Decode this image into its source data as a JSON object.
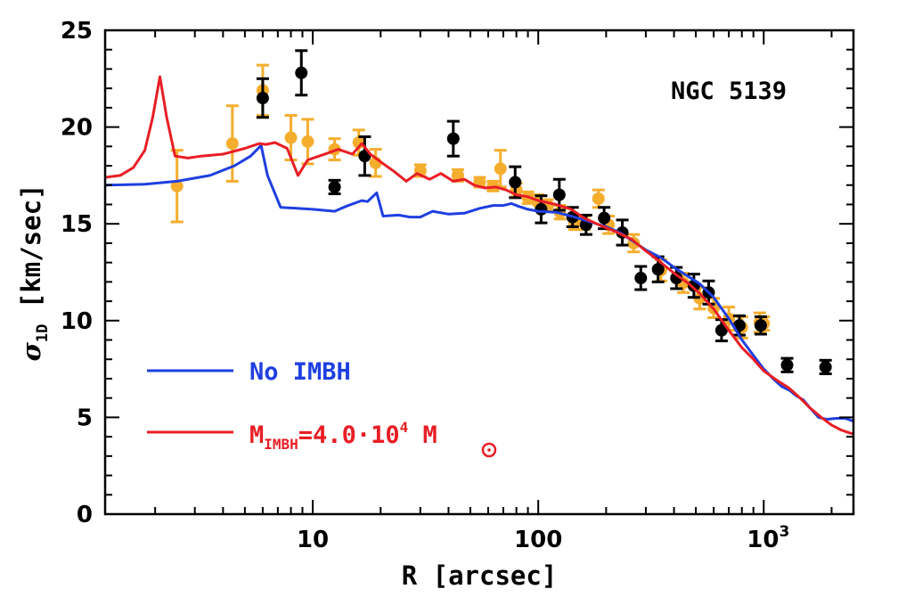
{
  "chart_data": {
    "type": "scatter",
    "annotation": "NGC 5139",
    "xlabel": "R [arcsec]",
    "ylabel_symbol": "σ",
    "ylabel_sub": "1D",
    "ylabel_rest": " [km/sec]",
    "x_scale": "log",
    "xlim": [
      1.2,
      2500
    ],
    "ylim": [
      0,
      25
    ],
    "x_ticks": [
      {
        "value": 10,
        "base": "10",
        "exp": ""
      },
      {
        "value": 100,
        "base": "100",
        "exp": ""
      },
      {
        "value": 1000,
        "base": "10",
        "exp": "3"
      }
    ],
    "y_ticks": [
      0,
      5,
      10,
      15,
      20,
      25
    ],
    "grid": false,
    "legend_position": "lower-left",
    "colors": {
      "blue": "#1f3fe0",
      "red": "#e81e25",
      "orange": "#f5ad2e",
      "black": "#000000"
    },
    "series": [
      {
        "kind": "line",
        "color_key": "blue",
        "legend_label": "No IMBH",
        "points": [
          [
            1.2,
            17.0
          ],
          [
            1.8,
            17.05
          ],
          [
            2.5,
            17.2
          ],
          [
            3.5,
            17.5
          ],
          [
            4.5,
            18.0
          ],
          [
            5.3,
            18.5
          ],
          [
            5.9,
            19.05
          ],
          [
            6.3,
            17.5
          ],
          [
            7.2,
            15.85
          ],
          [
            8.5,
            15.8
          ],
          [
            10,
            15.75
          ],
          [
            12.5,
            15.65
          ],
          [
            14,
            15.9
          ],
          [
            16.5,
            16.2
          ],
          [
            17.5,
            16.15
          ],
          [
            19.2,
            16.6
          ],
          [
            20.5,
            15.4
          ],
          [
            24,
            15.45
          ],
          [
            27,
            15.35
          ],
          [
            30,
            15.35
          ],
          [
            34,
            15.65
          ],
          [
            40,
            15.5
          ],
          [
            47,
            15.55
          ],
          [
            55,
            15.8
          ],
          [
            63,
            15.95
          ],
          [
            70,
            15.95
          ],
          [
            76,
            16.05
          ],
          [
            82,
            15.9
          ],
          [
            90,
            15.75
          ],
          [
            100,
            15.65
          ],
          [
            120,
            15.6
          ],
          [
            140,
            15.4
          ],
          [
            170,
            15.1
          ],
          [
            200,
            14.85
          ],
          [
            230,
            14.55
          ],
          [
            260,
            14.15
          ],
          [
            300,
            13.65
          ],
          [
            350,
            13.25
          ],
          [
            400,
            12.75
          ],
          [
            460,
            12.3
          ],
          [
            520,
            11.9
          ],
          [
            600,
            11.2
          ],
          [
            700,
            10.1
          ],
          [
            800,
            9.0
          ],
          [
            900,
            8.2
          ],
          [
            1000,
            7.5
          ],
          [
            1100,
            7.0
          ],
          [
            1200,
            6.6
          ],
          [
            1300,
            6.4
          ],
          [
            1400,
            6.1
          ],
          [
            1500,
            5.9
          ],
          [
            1600,
            5.5
          ],
          [
            1750,
            5.0
          ],
          [
            1900,
            4.9
          ],
          [
            2100,
            4.95
          ],
          [
            2300,
            4.95
          ],
          [
            2500,
            4.8
          ]
        ]
      },
      {
        "kind": "line",
        "color_key": "red",
        "legend_label": "M",
        "legend_sub": "IMBH",
        "legend_mid": "=4.0·10",
        "legend_sup": "4",
        "legend_tail": " M",
        "points": [
          [
            1.2,
            17.4
          ],
          [
            1.4,
            17.5
          ],
          [
            1.6,
            17.9
          ],
          [
            1.8,
            18.8
          ],
          [
            1.95,
            20.5
          ],
          [
            2.1,
            22.6
          ],
          [
            2.25,
            20.5
          ],
          [
            2.45,
            18.5
          ],
          [
            2.8,
            18.4
          ],
          [
            3.2,
            18.5
          ],
          [
            4,
            18.6
          ],
          [
            5,
            18.9
          ],
          [
            5.8,
            19.15
          ],
          [
            6.2,
            19.1
          ],
          [
            6.8,
            19.2
          ],
          [
            7.7,
            18.9
          ],
          [
            8.6,
            17.5
          ],
          [
            9.5,
            18.3
          ],
          [
            11,
            18.55
          ],
          [
            13,
            18.85
          ],
          [
            15,
            18.6
          ],
          [
            16.5,
            19.15
          ],
          [
            18,
            18.6
          ],
          [
            20,
            18.2
          ],
          [
            23,
            17.7
          ],
          [
            26,
            17.2
          ],
          [
            29,
            17.6
          ],
          [
            33,
            17.3
          ],
          [
            37,
            17.6
          ],
          [
            42,
            17.2
          ],
          [
            47,
            17.3
          ],
          [
            52,
            17.0
          ],
          [
            58,
            16.85
          ],
          [
            65,
            16.9
          ],
          [
            72,
            16.75
          ],
          [
            80,
            16.5
          ],
          [
            90,
            16.4
          ],
          [
            100,
            16.2
          ],
          [
            120,
            16.0
          ],
          [
            140,
            15.75
          ],
          [
            160,
            15.3
          ],
          [
            190,
            14.9
          ],
          [
            220,
            14.6
          ],
          [
            260,
            14.2
          ],
          [
            300,
            13.6
          ],
          [
            350,
            13.0
          ],
          [
            400,
            12.45
          ],
          [
            460,
            11.95
          ],
          [
            520,
            11.4
          ],
          [
            600,
            10.6
          ],
          [
            700,
            9.5
          ],
          [
            800,
            8.6
          ],
          [
            900,
            8.0
          ],
          [
            1000,
            7.4
          ],
          [
            1150,
            6.9
          ],
          [
            1300,
            6.5
          ],
          [
            1450,
            6.0
          ],
          [
            1600,
            5.5
          ],
          [
            1800,
            5.0
          ],
          [
            2000,
            4.6
          ],
          [
            2200,
            4.35
          ],
          [
            2400,
            4.2
          ],
          [
            2500,
            4.15
          ]
        ]
      },
      {
        "kind": "errorbar",
        "color_key": "orange",
        "points": [
          {
            "x": 2.5,
            "y": 16.95,
            "err": 1.85
          },
          {
            "x": 4.4,
            "y": 19.15,
            "err": 1.95
          },
          {
            "x": 6.0,
            "y": 21.9,
            "err": 1.3
          },
          {
            "x": 8.0,
            "y": 19.45,
            "err": 1.15
          },
          {
            "x": 9.5,
            "y": 19.25,
            "err": 1.15
          },
          {
            "x": 12.5,
            "y": 18.85,
            "err": 0.55
          },
          {
            "x": 16.0,
            "y": 19.2,
            "err": 0.65
          },
          {
            "x": 19.0,
            "y": 18.15,
            "err": 0.7
          },
          {
            "x": 30.0,
            "y": 17.75,
            "err": 0.3
          },
          {
            "x": 44.0,
            "y": 17.5,
            "err": 0.3
          },
          {
            "x": 55.0,
            "y": 17.15,
            "err": 0.25
          },
          {
            "x": 63.0,
            "y": 16.95,
            "err": 0.25
          },
          {
            "x": 68.0,
            "y": 17.85,
            "err": 0.95
          },
          {
            "x": 80.0,
            "y": 16.75,
            "err": 0.35
          },
          {
            "x": 90.0,
            "y": 16.35,
            "err": 0.3
          },
          {
            "x": 100.0,
            "y": 16.1,
            "err": 0.4
          },
          {
            "x": 110.0,
            "y": 15.95,
            "err": 0.3
          },
          {
            "x": 125.0,
            "y": 15.6,
            "err": 0.35
          },
          {
            "x": 145.0,
            "y": 15.05,
            "err": 0.35
          },
          {
            "x": 160.0,
            "y": 15.05,
            "err": 0.35
          },
          {
            "x": 185.0,
            "y": 16.3,
            "err": 0.45
          },
          {
            "x": 205.0,
            "y": 14.95,
            "err": 0.45
          },
          {
            "x": 265.0,
            "y": 14.0,
            "err": 0.45
          },
          {
            "x": 350.0,
            "y": 12.6,
            "err": 0.55
          },
          {
            "x": 440.0,
            "y": 11.95,
            "err": 0.5
          },
          {
            "x": 520.0,
            "y": 11.15,
            "err": 0.55
          },
          {
            "x": 600.0,
            "y": 10.65,
            "err": 0.5
          },
          {
            "x": 700.0,
            "y": 10.1,
            "err": 0.6
          },
          {
            "x": 800.0,
            "y": 9.65,
            "err": 0.55
          },
          {
            "x": 960.0,
            "y": 9.9,
            "err": 0.5
          },
          {
            "x": 1000.0,
            "y": 9.85,
            "err": 0.35
          }
        ]
      },
      {
        "kind": "errorbar",
        "color_key": "black",
        "points": [
          {
            "x": 6.0,
            "y": 21.5,
            "err": 1.0
          },
          {
            "x": 8.9,
            "y": 22.8,
            "err": 1.15
          },
          {
            "x": 12.5,
            "y": 16.9,
            "err": 0.35
          },
          {
            "x": 17.0,
            "y": 18.5,
            "err": 1.0
          },
          {
            "x": 42.0,
            "y": 19.4,
            "err": 0.9
          },
          {
            "x": 79.0,
            "y": 17.15,
            "err": 0.8
          },
          {
            "x": 103.0,
            "y": 15.75,
            "err": 0.7
          },
          {
            "x": 124.0,
            "y": 16.5,
            "err": 0.8
          },
          {
            "x": 142.0,
            "y": 15.35,
            "err": 0.5
          },
          {
            "x": 163.0,
            "y": 14.95,
            "err": 0.5
          },
          {
            "x": 196.0,
            "y": 15.3,
            "err": 0.55
          },
          {
            "x": 236.0,
            "y": 14.55,
            "err": 0.65
          },
          {
            "x": 285.0,
            "y": 12.2,
            "err": 0.6
          },
          {
            "x": 340.0,
            "y": 12.65,
            "err": 0.65
          },
          {
            "x": 410.0,
            "y": 12.2,
            "err": 0.55
          },
          {
            "x": 490.0,
            "y": 11.8,
            "err": 0.6
          },
          {
            "x": 570.0,
            "y": 11.45,
            "err": 0.6
          },
          {
            "x": 650.0,
            "y": 9.5,
            "err": 0.55
          },
          {
            "x": 780.0,
            "y": 9.75,
            "err": 0.5
          },
          {
            "x": 970.0,
            "y": 9.75,
            "err": 0.45
          },
          {
            "x": 1270.0,
            "y": 7.7,
            "err": 0.35
          },
          {
            "x": 1880.0,
            "y": 7.6,
            "err": 0.35
          }
        ]
      }
    ]
  }
}
